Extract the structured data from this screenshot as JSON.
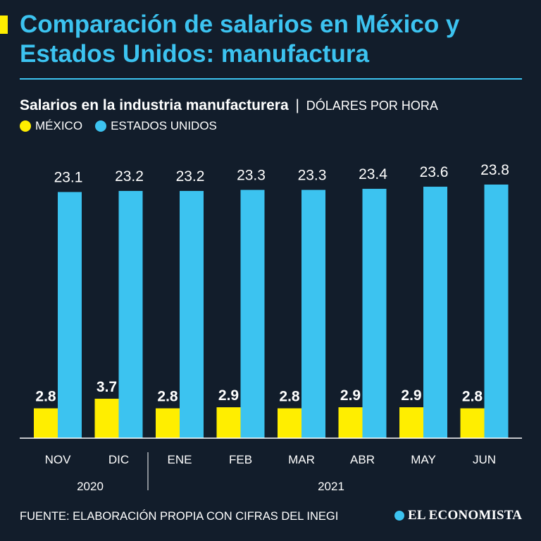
{
  "header": {
    "title": "Comparación de salarios en México y Estados Unidos: manufactura",
    "accent_color": "#ffee00",
    "title_color": "#3cc3f0"
  },
  "subtitle": {
    "main": "Salarios en la industria manufacturera",
    "separator": "|",
    "unit": "DÓLARES POR HORA"
  },
  "legend": {
    "items": [
      {
        "label": "MÉXICO",
        "color": "#ffee00"
      },
      {
        "label": "ESTADOS UNIDOS",
        "color": "#3cc3f0"
      }
    ]
  },
  "chart_data": {
    "type": "bar",
    "categories": [
      "NOV",
      "DIC",
      "ENE",
      "FEB",
      "MAR",
      "ABR",
      "MAY",
      "JUN"
    ],
    "year_groups": [
      {
        "label": "2020",
        "categories": [
          "NOV",
          "DIC"
        ]
      },
      {
        "label": "2021",
        "categories": [
          "ENE",
          "FEB",
          "MAR",
          "ABR",
          "MAY",
          "JUN"
        ]
      }
    ],
    "series": [
      {
        "name": "MÉXICO",
        "color": "#ffee00",
        "values": [
          2.8,
          3.7,
          2.8,
          2.9,
          2.8,
          2.9,
          2.9,
          2.8
        ]
      },
      {
        "name": "ESTADOS UNIDOS",
        "color": "#3cc3f0",
        "values": [
          23.1,
          23.2,
          23.2,
          23.3,
          23.3,
          23.4,
          23.6,
          23.8
        ]
      }
    ],
    "data_labels": {
      "MÉXICO": [
        "2.8",
        "3.7",
        "2.8",
        "2.9",
        "2.8",
        "2.9",
        "2.9",
        "2.8"
      ],
      "ESTADOS UNIDOS": [
        "23.1",
        "23.2",
        "23.2",
        "23.3",
        "23.3",
        "23.4",
        "23.6",
        "23.8"
      ]
    },
    "ylim": [
      0,
      24
    ],
    "grid": false,
    "legend_position": "top-left"
  },
  "footer": {
    "source": "FUENTE: ELABORACIÓN PROPIA CON CIFRAS DEL INEGI",
    "brand": "EL ECONOMISTA",
    "brand_icon": "globe-icon"
  }
}
